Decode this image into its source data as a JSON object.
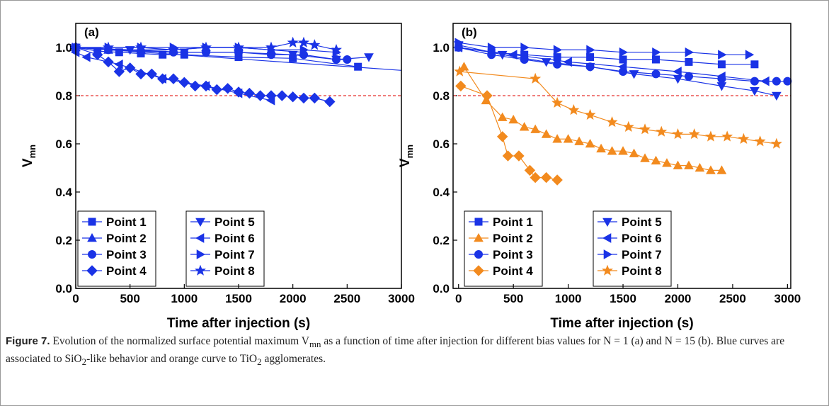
{
  "chart_data": [
    {
      "type": "line",
      "label": "(a)",
      "xlabel": "Time after injection (s)",
      "ylabel": "V",
      "ylabel_sub": "mn",
      "xlim": [
        0,
        3000
      ],
      "xticks": [
        0,
        500,
        1000,
        1500,
        2000,
        2500,
        3000
      ],
      "ylim": [
        0,
        1.1
      ],
      "yticks": [
        {
          "value": 0,
          "label": "0.0"
        },
        0.2,
        0.4,
        0.6,
        0.8,
        {
          "value": 1,
          "label": "1.0"
        }
      ],
      "hline": {
        "value": 0.8,
        "color": "#e8322e"
      },
      "fit_line": {
        "x": [
          0,
          3000
        ],
        "values": [
          1.0,
          0.905
        ],
        "color": "#1a33e6"
      },
      "series": [
        {
          "name": "Point 1",
          "color": "#1a33e6",
          "marker": "square",
          "x": [
            0,
            200,
            400,
            600,
            800,
            1000,
            1500,
            2000,
            2600
          ],
          "values": [
            1.0,
            0.985,
            0.98,
            0.975,
            0.97,
            0.97,
            0.96,
            0.955,
            0.92
          ]
        },
        {
          "name": "Point 2",
          "color": "#1a33e6",
          "marker": "triangle-up",
          "x": [
            0,
            300,
            600,
            900,
            1200,
            1500,
            1800,
            2100
          ],
          "values": [
            1.0,
            0.99,
            0.99,
            0.99,
            1.0,
            1.0,
            0.99,
            0.98
          ]
        },
        {
          "name": "Point 3",
          "color": "#1a33e6",
          "marker": "circle",
          "x": [
            0,
            300,
            600,
            900,
            1200,
            1500,
            1800,
            2100,
            2400,
            2500
          ],
          "values": [
            1.0,
            0.99,
            0.985,
            0.98,
            0.98,
            0.98,
            0.97,
            0.97,
            0.95,
            0.95
          ]
        },
        {
          "name": "Point 4",
          "color": "#1a33e6",
          "marker": "diamond",
          "x": [
            0,
            200,
            300,
            400,
            500,
            600,
            700,
            800,
            900,
            1000,
            1100,
            1200,
            1300,
            1400,
            1500,
            1600,
            1700,
            1800,
            1900,
            2000,
            2100,
            2200,
            2340
          ],
          "values": [
            1.0,
            0.97,
            0.94,
            0.9,
            0.915,
            0.89,
            0.89,
            0.87,
            0.87,
            0.855,
            0.84,
            0.84,
            0.825,
            0.83,
            0.815,
            0.81,
            0.8,
            0.8,
            0.8,
            0.795,
            0.79,
            0.79,
            0.775
          ]
        },
        {
          "name": "Point 5",
          "color": "#1a33e6",
          "marker": "triangle-down",
          "x": [
            0,
            500,
            1000,
            1500,
            2000,
            2400,
            2700
          ],
          "values": [
            1.0,
            0.99,
            0.98,
            0.98,
            0.97,
            0.95,
            0.96
          ]
        },
        {
          "name": "Point 6",
          "color": "#1a33e6",
          "marker": "triangle-left",
          "x": [
            0,
            100,
            400,
            800,
            1200,
            1500,
            1800
          ],
          "values": [
            0.98,
            0.96,
            0.93,
            0.87,
            0.84,
            0.81,
            0.78
          ]
        },
        {
          "name": "Point 7",
          "color": "#1a33e6",
          "marker": "triangle-right",
          "x": [
            0,
            300,
            600,
            900,
            1200,
            1500,
            1800,
            2100,
            2400
          ],
          "values": [
            1.0,
            1.0,
            1.0,
            1.0,
            1.0,
            1.0,
            0.99,
            0.99,
            0.98
          ]
        },
        {
          "name": "Point 8",
          "color": "#1a33e6",
          "marker": "star",
          "x": [
            0,
            300,
            600,
            900,
            1200,
            1500,
            1800,
            2000,
            2100,
            2200,
            2400
          ],
          "values": [
            1.0,
            1.0,
            1.0,
            0.99,
            1.0,
            1.0,
            1.0,
            1.02,
            1.02,
            1.01,
            0.99
          ]
        }
      ]
    },
    {
      "type": "line",
      "label": "(b)",
      "xlabel": "Time after injection (s)",
      "ylabel": "V",
      "ylabel_sub": "mn",
      "xlim": [
        -50,
        3030
      ],
      "xticks": [
        0,
        500,
        1000,
        1500,
        2000,
        2500,
        3000
      ],
      "ylim": [
        0,
        1.1
      ],
      "yticks": [
        {
          "value": 0,
          "label": "0.0"
        },
        0.2,
        0.4,
        0.6,
        0.8,
        {
          "value": 1,
          "label": "1.0"
        }
      ],
      "hline": {
        "value": 0.8,
        "color": "#e8322e"
      },
      "series": [
        {
          "name": "Point 1",
          "color": "#1a33e6",
          "marker": "square",
          "x": [
            0,
            300,
            600,
            900,
            1200,
            1500,
            1800,
            2100,
            2400,
            2700
          ],
          "values": [
            1.0,
            0.98,
            0.97,
            0.96,
            0.96,
            0.95,
            0.95,
            0.94,
            0.93,
            0.93
          ]
        },
        {
          "name": "Point 2",
          "color": "#f28a1e",
          "marker": "triangle-up",
          "x": [
            50,
            250,
            400,
            500,
            600,
            700,
            800,
            900,
            1000,
            1100,
            1200,
            1300,
            1400,
            1500,
            1600,
            1700,
            1800,
            1900,
            2000,
            2100,
            2200,
            2300,
            2400
          ],
          "values": [
            0.92,
            0.78,
            0.71,
            0.7,
            0.67,
            0.66,
            0.64,
            0.62,
            0.62,
            0.61,
            0.6,
            0.58,
            0.57,
            0.57,
            0.56,
            0.54,
            0.53,
            0.52,
            0.51,
            0.51,
            0.5,
            0.49,
            0.49
          ]
        },
        {
          "name": "Point 3",
          "color": "#1a33e6",
          "marker": "circle",
          "x": [
            0,
            300,
            600,
            900,
            1200,
            1500,
            1800,
            2100,
            2400,
            2700,
            2900,
            3000
          ],
          "values": [
            1.0,
            0.97,
            0.95,
            0.93,
            0.92,
            0.9,
            0.89,
            0.88,
            0.87,
            0.86,
            0.86,
            0.86
          ]
        },
        {
          "name": "Point 4",
          "color": "#f28a1e",
          "marker": "diamond",
          "x": [
            20,
            260,
            400,
            450,
            550,
            650,
            700,
            800,
            900
          ],
          "values": [
            0.84,
            0.8,
            0.63,
            0.55,
            0.55,
            0.49,
            0.46,
            0.46,
            0.45
          ]
        },
        {
          "name": "Point 5",
          "color": "#1a33e6",
          "marker": "triangle-down",
          "x": [
            0,
            400,
            800,
            1200,
            1600,
            2000,
            2400,
            2700,
            2900
          ],
          "values": [
            1.01,
            0.97,
            0.94,
            0.92,
            0.89,
            0.87,
            0.84,
            0.82,
            0.8
          ]
        },
        {
          "name": "Point 6",
          "color": "#1a33e6",
          "marker": "triangle-left",
          "x": [
            0,
            500,
            1000,
            1500,
            2000,
            2400,
            2800
          ],
          "values": [
            1.0,
            0.97,
            0.94,
            0.92,
            0.9,
            0.88,
            0.86
          ]
        },
        {
          "name": "Point 7",
          "color": "#1a33e6",
          "marker": "triangle-right",
          "x": [
            0,
            300,
            600,
            900,
            1200,
            1500,
            1800,
            2100,
            2400,
            2650
          ],
          "values": [
            1.02,
            1.0,
            1.0,
            0.99,
            0.99,
            0.98,
            0.98,
            0.98,
            0.97,
            0.97
          ]
        },
        {
          "name": "Point 8",
          "color": "#f28a1e",
          "marker": "star",
          "x": [
            10,
            700,
            900,
            1050,
            1200,
            1400,
            1550,
            1700,
            1850,
            2000,
            2150,
            2300,
            2450,
            2600,
            2750,
            2900
          ],
          "values": [
            0.9,
            0.87,
            0.77,
            0.74,
            0.72,
            0.69,
            0.67,
            0.66,
            0.65,
            0.64,
            0.64,
            0.63,
            0.63,
            0.62,
            0.61,
            0.6
          ]
        }
      ]
    }
  ],
  "caption": {
    "label": "Figure 7.",
    "segments": [
      {
        "text": " Evolution of the normalized surface potential maximum V"
      },
      {
        "text": "mn",
        "sub": true
      },
      {
        "text": " as a function of time after injection for different bias values for N = 1 (a) and N = 15 (b). Blue curves are associated to SiO"
      },
      {
        "text": "2",
        "sub": true
      },
      {
        "text": "-like behavior and orange curve to TiO"
      },
      {
        "text": "2",
        "sub": true
      },
      {
        "text": " agglomerates."
      }
    ]
  }
}
